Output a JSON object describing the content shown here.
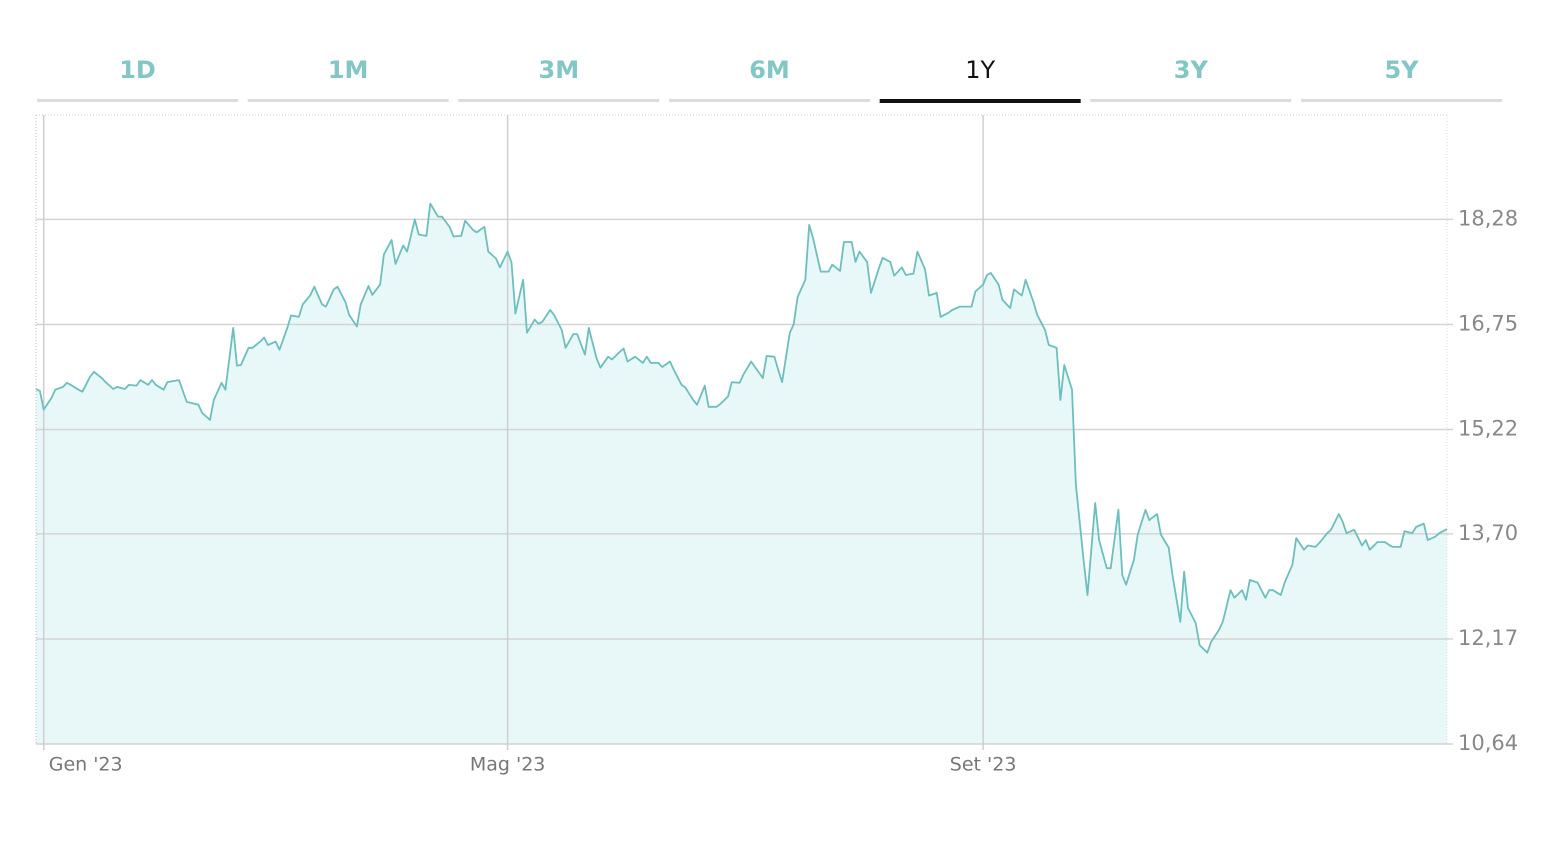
{
  "tabs": [
    "1D",
    "1M",
    "3M",
    "6M",
    "1Y",
    "3Y",
    "5Y"
  ],
  "active_tab": 4,
  "chart_data": {
    "type": "area",
    "color": "#6cbfbe",
    "fill_color": "#e8f7f7",
    "grid": true,
    "ylim": [
      10.64,
      19.8
    ],
    "yticks": [
      {
        "value": 10.64,
        "label": "10,64"
      },
      {
        "value": 12.17,
        "label": "12,17"
      },
      {
        "value": 13.7,
        "label": "13,70"
      },
      {
        "value": 15.22,
        "label": "15,22"
      },
      {
        "value": 16.75,
        "label": "16,75"
      },
      {
        "value": 18.28,
        "label": "18,28"
      }
    ],
    "xlim": [
      -2,
      363
    ],
    "xticks": [
      {
        "value": 0,
        "label": "Gen '23"
      },
      {
        "value": 120,
        "label": "Mag '23"
      },
      {
        "value": 243,
        "label": "Set '23"
      }
    ],
    "x": [
      -2,
      -1,
      0,
      2,
      3,
      5,
      6,
      7,
      9,
      10,
      12,
      13,
      15,
      16,
      18,
      19,
      21,
      22,
      24,
      25,
      27,
      28,
      29,
      31,
      32,
      34,
      35,
      37,
      38,
      40,
      41,
      43,
      44,
      46,
      47,
      49,
      50,
      51,
      53,
      54,
      56,
      57,
      58,
      60,
      61,
      63,
      64,
      66,
      67,
      69,
      70,
      72,
      73,
      75,
      76,
      78,
      79,
      81,
      82,
      84,
      85,
      87,
      88,
      90,
      91,
      93,
      94,
      96,
      97,
      99,
      100,
      102,
      103,
      105,
      106,
      108,
      109,
      111,
      112,
      114,
      115,
      117,
      118,
      120,
      121,
      122,
      124,
      125,
      127,
      128,
      129,
      131,
      132,
      134,
      135,
      137,
      138,
      140,
      141,
      143,
      144,
      146,
      147,
      149,
      150,
      151,
      153,
      155,
      156,
      157,
      159,
      160,
      162,
      163,
      165,
      166,
      168,
      169,
      171,
      172,
      174,
      175,
      177,
      178,
      180,
      181,
      183,
      184,
      186,
      187,
      189,
      190,
      191,
      193,
      194,
      195,
      197,
      198,
      199,
      201,
      203,
      204,
      206,
      207,
      209,
      210,
      211,
      213,
      214,
      216,
      217,
      219,
      220,
      222,
      223,
      225,
      226,
      228,
      229,
      231,
      232,
      234,
      235,
      237,
      238,
      240,
      241,
      243,
      244,
      245,
      247,
      248,
      250,
      251,
      253,
      254,
      256,
      257,
      259,
      260,
      262,
      263,
      264,
      266,
      267,
      269,
      270,
      272,
      273,
      275,
      276,
      278,
      279,
      280,
      282,
      283,
      285,
      286,
      288,
      289,
      291,
      292,
      294,
      295,
      296,
      298,
      299,
      301,
      302,
      304,
      305,
      307,
      308,
      310,
      311,
      312,
      314,
      316,
      317,
      318,
      320,
      321,
      323,
      324,
      326,
      327,
      329,
      330,
      332,
      333,
      335,
      336,
      337,
      339,
      341,
      342,
      343,
      345,
      347,
      348,
      349,
      351,
      352,
      354,
      355,
      357,
      358,
      360,
      361,
      363
    ],
    "values": [
      15.81,
      15.78,
      15.51,
      15.68,
      15.8,
      15.84,
      15.9,
      15.87,
      15.8,
      15.77,
      15.99,
      16.06,
      15.97,
      15.91,
      15.81,
      15.84,
      15.81,
      15.87,
      15.86,
      15.94,
      15.87,
      15.94,
      15.87,
      15.8,
      15.91,
      15.93,
      15.94,
      15.62,
      15.61,
      15.58,
      15.46,
      15.36,
      15.65,
      15.9,
      15.8,
      16.7,
      16.15,
      16.16,
      16.41,
      16.41,
      16.5,
      16.56,
      16.45,
      16.5,
      16.38,
      16.7,
      16.88,
      16.86,
      17.04,
      17.18,
      17.3,
      17.04,
      17.01,
      17.26,
      17.3,
      17.08,
      16.89,
      16.72,
      17.04,
      17.31,
      17.18,
      17.33,
      17.77,
      17.98,
      17.63,
      17.9,
      17.81,
      18.28,
      18.06,
      18.04,
      18.51,
      18.32,
      18.32,
      18.17,
      18.03,
      18.04,
      18.26,
      18.13,
      18.09,
      18.17,
      17.81,
      17.71,
      17.58,
      17.81,
      17.65,
      16.91,
      17.4,
      16.63,
      16.82,
      16.76,
      16.79,
      16.96,
      16.89,
      16.67,
      16.41,
      16.61,
      16.61,
      16.31,
      16.7,
      16.26,
      16.12,
      16.28,
      16.24,
      16.35,
      16.4,
      16.21,
      16.28,
      16.19,
      16.28,
      16.19,
      16.19,
      16.13,
      16.21,
      16.09,
      15.87,
      15.83,
      15.65,
      15.58,
      15.86,
      15.55,
      15.55,
      15.59,
      15.7,
      15.91,
      15.9,
      16.02,
      16.21,
      16.13,
      15.97,
      16.29,
      16.28,
      16.09,
      15.91,
      16.63,
      16.75,
      17.15,
      17.4,
      18.2,
      18.01,
      17.52,
      17.52,
      17.62,
      17.53,
      17.95,
      17.95,
      17.66,
      17.81,
      17.66,
      17.21,
      17.56,
      17.72,
      17.66,
      17.46,
      17.58,
      17.47,
      17.49,
      17.81,
      17.55,
      17.17,
      17.21,
      16.86,
      16.92,
      16.96,
      17.01,
      17.01,
      17.01,
      17.23,
      17.33,
      17.47,
      17.5,
      17.33,
      17.11,
      16.99,
      17.26,
      17.17,
      17.4,
      17.08,
      16.89,
      16.67,
      16.45,
      16.41,
      15.65,
      16.16,
      15.8,
      14.41,
      13.32,
      12.81,
      14.15,
      13.61,
      13.2,
      13.2,
      14.05,
      13.1,
      12.96,
      13.32,
      13.69,
      14.05,
      13.9,
      13.99,
      13.69,
      13.5,
      13.1,
      12.42,
      13.15,
      12.62,
      12.4,
      12.08,
      11.97,
      12.13,
      12.3,
      12.42,
      12.88,
      12.77,
      12.88,
      12.74,
      13.03,
      12.99,
      12.77,
      12.88,
      12.88,
      12.81,
      12.99,
      13.25,
      13.64,
      13.47,
      13.53,
      13.51,
      13.57,
      13.71,
      13.76,
      13.99,
      13.88,
      13.71,
      13.76,
      13.53,
      13.61,
      13.47,
      13.58,
      13.58,
      13.54,
      13.51,
      13.51,
      13.74,
      13.71,
      13.8,
      13.85,
      13.61,
      13.66,
      13.71,
      13.77
    ]
  }
}
